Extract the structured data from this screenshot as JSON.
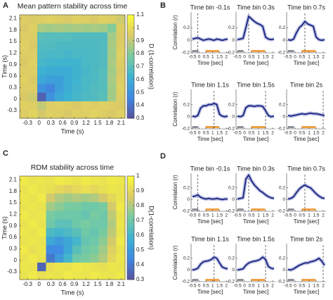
{
  "panel_labels": [
    "A",
    "B",
    "C",
    "D"
  ],
  "chart_data": [
    {
      "type": "heatmap",
      "title": "Mean pattern stability across time",
      "xlabel": "Time (s)",
      "ylabel": "Time (s)",
      "colorbar_label": "D (1-correlation)",
      "xlim": [
        -0.5,
        2.2
      ],
      "ylim": [
        -0.5,
        2.2
      ],
      "xticks": [
        -0.3,
        0,
        0.3,
        0.6,
        0.9,
        1.2,
        1.5,
        1.8,
        2.1
      ],
      "yticks": [
        -0.3,
        0,
        0.3,
        0.6,
        0.9,
        1.2,
        1.5,
        1.8,
        2.1
      ],
      "clim": [
        0.3,
        1.1
      ],
      "cticks": [
        0.3,
        0.4,
        0.5,
        0.6,
        0.7,
        0.8,
        0.9,
        1,
        1.1
      ],
      "z": [
        [
          0.95,
          0.97,
          0.93,
          0.96,
          0.95,
          0.94,
          0.96,
          0.95,
          0.97,
          0.95,
          0.94,
          0.96
        ],
        [
          0.96,
          0.95,
          0.9,
          0.95,
          0.96,
          0.95,
          0.94,
          0.96,
          0.95,
          0.96,
          0.95,
          0.94
        ],
        [
          0.94,
          0.92,
          0.35,
          0.5,
          0.58,
          0.62,
          0.65,
          0.67,
          0.68,
          0.7,
          0.85,
          0.95
        ],
        [
          0.95,
          0.95,
          0.5,
          0.45,
          0.55,
          0.6,
          0.64,
          0.66,
          0.68,
          0.69,
          0.85,
          0.96
        ],
        [
          0.96,
          0.94,
          0.58,
          0.55,
          0.55,
          0.6,
          0.63,
          0.66,
          0.67,
          0.69,
          0.86,
          0.95
        ],
        [
          0.95,
          0.95,
          0.62,
          0.6,
          0.6,
          0.6,
          0.63,
          0.65,
          0.67,
          0.69,
          0.85,
          0.94
        ],
        [
          0.94,
          0.96,
          0.65,
          0.64,
          0.63,
          0.63,
          0.63,
          0.66,
          0.67,
          0.68,
          0.86,
          0.95
        ],
        [
          0.95,
          0.95,
          0.67,
          0.66,
          0.66,
          0.65,
          0.66,
          0.66,
          0.67,
          0.68,
          0.85,
          0.96
        ],
        [
          0.96,
          0.94,
          0.68,
          0.68,
          0.67,
          0.67,
          0.67,
          0.67,
          0.67,
          0.68,
          0.86,
          0.95
        ],
        [
          0.95,
          0.95,
          0.7,
          0.69,
          0.69,
          0.69,
          0.68,
          0.68,
          0.68,
          0.68,
          0.85,
          0.94
        ],
        [
          0.94,
          0.96,
          0.86,
          0.85,
          0.86,
          0.85,
          0.86,
          0.85,
          0.86,
          0.85,
          0.8,
          0.95
        ],
        [
          0.95,
          0.94,
          0.95,
          0.96,
          0.95,
          0.94,
          0.96,
          0.95,
          0.94,
          0.96,
          0.95,
          0.92
        ]
      ]
    },
    {
      "type": "line",
      "title": "Time bin -0.1s",
      "ylabel": "Correlation (r)",
      "xlabel": "Time [sec]",
      "vline": -0.1,
      "xlim": [
        -0.6,
        2.2
      ],
      "ylim": [
        -0.2,
        0.45
      ],
      "xticks": [
        -0.5,
        0,
        0.5,
        1,
        1.5,
        2
      ],
      "yticks": [
        -0.2,
        0,
        0.2
      ],
      "x": [
        -0.5,
        -0.3,
        -0.1,
        0.1,
        0.3,
        0.5,
        0.7,
        0.9,
        1.1,
        1.3,
        1.5,
        1.7,
        1.9,
        2.1
      ],
      "series": [
        {
          "color": "#1a237e",
          "values": [
            0.02,
            0.03,
            0.04,
            0.02,
            0.0,
            0.01,
            0.02,
            0.01,
            0.0,
            0.02,
            0.01,
            0.0,
            0.01,
            0.02
          ]
        }
      ]
    },
    {
      "type": "line",
      "title": "Time bin 0.3s",
      "xlabel": "Time [sec]",
      "vline": 0.3,
      "xlim": [
        -0.6,
        2.2
      ],
      "ylim": [
        -0.2,
        0.45
      ],
      "xticks": [
        -0.5,
        0,
        0.5,
        1,
        1.5,
        2
      ],
      "yticks": [
        -0.2,
        0,
        0.2
      ],
      "x": [
        -0.5,
        -0.3,
        -0.1,
        0.1,
        0.3,
        0.5,
        0.7,
        0.9,
        1.1,
        1.3,
        1.5,
        1.7,
        1.9,
        2.1
      ],
      "series": [
        {
          "color": "#1a237e",
          "values": [
            0.01,
            0.02,
            0.03,
            0.2,
            0.38,
            0.34,
            0.3,
            0.27,
            0.25,
            0.22,
            0.05,
            0.02,
            0.01,
            0.02
          ]
        }
      ]
    },
    {
      "type": "line",
      "title": "Time bin 0.7s",
      "xlabel": "Time [sec]",
      "vline": 0.7,
      "xlim": [
        -0.6,
        2.2
      ],
      "ylim": [
        -0.2,
        0.45
      ],
      "xticks": [
        -0.5,
        0,
        0.5,
        1,
        1.5,
        2
      ],
      "yticks": [
        -0.2,
        0,
        0.2
      ],
      "x": [
        -0.5,
        -0.3,
        -0.1,
        0.1,
        0.3,
        0.5,
        0.7,
        0.9,
        1.1,
        1.3,
        1.5,
        1.7,
        1.9,
        2.1
      ],
      "series": [
        {
          "color": "#1a237e",
          "values": [
            0.01,
            0.0,
            0.02,
            0.12,
            0.2,
            0.24,
            0.3,
            0.26,
            0.24,
            0.22,
            0.05,
            0.01,
            0.0,
            0.01
          ]
        }
      ]
    },
    {
      "type": "line",
      "title": "Time bin 1.1s",
      "ylabel": "Correlation (r)",
      "xlabel": "Time [sec]",
      "vline": 1.1,
      "xlim": [
        -0.6,
        2.2
      ],
      "ylim": [
        -0.2,
        0.45
      ],
      "xticks": [
        -0.5,
        0,
        0.5,
        1,
        1.5,
        2
      ],
      "yticks": [
        -0.2,
        0,
        0.2
      ],
      "x": [
        -0.5,
        -0.3,
        -0.1,
        0.1,
        0.3,
        0.5,
        0.7,
        0.9,
        1.1,
        1.3,
        1.5,
        1.7,
        1.9,
        2.1
      ],
      "series": [
        {
          "color": "#1a237e",
          "values": [
            0.01,
            0.0,
            0.02,
            0.14,
            0.18,
            0.18,
            0.2,
            0.2,
            0.22,
            0.2,
            0.04,
            0.01,
            0.0,
            0.01
          ]
        }
      ]
    },
    {
      "type": "line",
      "title": "Time bin 1.5s",
      "xlabel": "Time [sec]",
      "vline": 1.5,
      "xlim": [
        -0.6,
        2.2
      ],
      "ylim": [
        -0.2,
        0.45
      ],
      "xticks": [
        -0.5,
        0,
        0.5,
        1,
        1.5,
        2
      ],
      "yticks": [
        -0.2,
        0,
        0.2
      ],
      "x": [
        -0.5,
        -0.3,
        -0.1,
        0.1,
        0.3,
        0.5,
        0.7,
        0.9,
        1.1,
        1.3,
        1.5,
        1.7,
        1.9,
        2.1
      ],
      "series": [
        {
          "color": "#1a237e",
          "values": [
            0.01,
            0.0,
            0.02,
            0.15,
            0.18,
            0.18,
            0.17,
            0.18,
            0.18,
            0.17,
            0.1,
            0.02,
            0.0,
            0.01
          ]
        }
      ]
    },
    {
      "type": "line",
      "title": "Time bin 2s",
      "xlabel": "Time [sec]",
      "vline": 2,
      "xlim": [
        -0.6,
        2.2
      ],
      "ylim": [
        -0.2,
        0.45
      ],
      "xticks": [
        -0.5,
        0,
        0.5,
        1,
        1.5,
        2
      ],
      "yticks": [
        -0.2,
        0,
        0.2
      ],
      "x": [
        -0.5,
        -0.3,
        -0.1,
        0.1,
        0.3,
        0.5,
        0.7,
        0.9,
        1.1,
        1.3,
        1.5,
        1.7,
        1.9,
        2.1
      ],
      "series": [
        {
          "color": "#1a237e",
          "values": [
            0.02,
            0.01,
            0.02,
            0.03,
            0.04,
            0.05,
            0.04,
            0.05,
            0.06,
            0.05,
            0.05,
            0.04,
            0.03,
            0.02
          ]
        }
      ]
    },
    {
      "type": "heatmap",
      "title": "RDM stability across time",
      "xlabel": "Time (s)",
      "ylabel": "Time (s)",
      "colorbar_label": "D(1-correlation)",
      "xlim": [
        -0.5,
        2.2
      ],
      "ylim": [
        -0.5,
        2.2
      ],
      "xticks": [
        -0.3,
        0,
        0.3,
        0.6,
        0.9,
        1.2,
        1.5,
        1.8,
        2.1
      ],
      "yticks": [
        -0.3,
        0,
        0.3,
        0.6,
        0.9,
        1.2,
        1.5,
        1.8,
        2.1
      ],
      "clim": [
        0.3,
        1.0
      ],
      "cticks": [
        0.3,
        0.4,
        0.5,
        0.6,
        0.7,
        0.8,
        0.9,
        1
      ],
      "z": [
        [
          0.93,
          0.95,
          0.92,
          0.94,
          0.93,
          0.95,
          0.94,
          0.93,
          0.95,
          0.94,
          0.93,
          0.95
        ],
        [
          0.94,
          0.93,
          0.35,
          0.92,
          0.94,
          0.93,
          0.95,
          0.94,
          0.93,
          0.92,
          0.94,
          0.93
        ],
        [
          0.93,
          0.95,
          0.93,
          0.4,
          0.5,
          0.6,
          0.7,
          0.72,
          0.75,
          0.8,
          0.9,
          0.94
        ],
        [
          0.95,
          0.92,
          0.94,
          0.45,
          0.45,
          0.55,
          0.65,
          0.7,
          0.72,
          0.78,
          0.88,
          0.93
        ],
        [
          0.93,
          0.94,
          0.93,
          0.55,
          0.5,
          0.55,
          0.6,
          0.68,
          0.7,
          0.75,
          0.85,
          0.95
        ],
        [
          0.94,
          0.93,
          0.95,
          0.62,
          0.6,
          0.62,
          0.65,
          0.7,
          0.68,
          0.72,
          0.82,
          0.93
        ],
        [
          0.93,
          0.95,
          0.93,
          0.7,
          0.66,
          0.66,
          0.7,
          0.72,
          0.7,
          0.7,
          0.8,
          0.94
        ],
        [
          0.95,
          0.93,
          0.94,
          0.72,
          0.7,
          0.7,
          0.7,
          0.68,
          0.72,
          0.7,
          0.82,
          0.93
        ],
        [
          0.93,
          0.94,
          0.93,
          0.78,
          0.75,
          0.72,
          0.72,
          0.7,
          0.7,
          0.72,
          0.85,
          0.95
        ],
        [
          0.94,
          0.93,
          0.95,
          0.85,
          0.8,
          0.78,
          0.8,
          0.78,
          0.8,
          0.85,
          0.9,
          0.93
        ],
        [
          0.93,
          0.95,
          0.93,
          0.92,
          0.9,
          0.88,
          0.9,
          0.92,
          0.9,
          0.92,
          0.94,
          0.93
        ],
        [
          0.95,
          0.93,
          0.94,
          0.93,
          0.95,
          0.94,
          0.93,
          0.95,
          0.94,
          0.93,
          0.95,
          0.94
        ]
      ]
    },
    {
      "type": "line",
      "title": "Time bin -0.1s",
      "ylabel": "Correlation (r)",
      "xlabel": "Time [sec]",
      "vline": -0.1,
      "xlim": [
        -0.6,
        2.2
      ],
      "ylim": [
        -0.2,
        0.45
      ],
      "xticks": [
        -0.5,
        0,
        0.5,
        1,
        1.5,
        2
      ],
      "yticks": [
        -0.2,
        0,
        0.2
      ],
      "x": [
        -0.5,
        -0.3,
        -0.1,
        0.1,
        0.3,
        0.5,
        0.7,
        0.9,
        1.1,
        1.3,
        1.5,
        1.7,
        1.9,
        2.1
      ],
      "series": [
        {
          "color": "#1a237e",
          "values": [
            0.05,
            0.06,
            0.08,
            0.04,
            0.02,
            0.01,
            0.02,
            0.01,
            0.01,
            0.02,
            0.01,
            0.0,
            0.01,
            0.01
          ]
        }
      ]
    },
    {
      "type": "line",
      "title": "Time bin 0.3s",
      "xlabel": "Time [sec]",
      "vline": 0.3,
      "xlim": [
        -0.6,
        2.2
      ],
      "ylim": [
        -0.2,
        0.45
      ],
      "xticks": [
        -0.5,
        0,
        0.5,
        1,
        1.5,
        2
      ],
      "yticks": [
        -0.2,
        0,
        0.2
      ],
      "x": [
        -0.5,
        -0.3,
        -0.1,
        0.1,
        0.3,
        0.5,
        0.7,
        0.9,
        1.1,
        1.3,
        1.5,
        1.7,
        1.9,
        2.1
      ],
      "series": [
        {
          "color": "#1a237e",
          "values": [
            0.01,
            0.02,
            0.03,
            0.35,
            0.42,
            0.32,
            0.25,
            0.2,
            0.15,
            0.12,
            0.08,
            0.05,
            0.03,
            0.02
          ]
        }
      ]
    },
    {
      "type": "line",
      "title": "Time bin 0.7s",
      "xlabel": "Time [sec]",
      "vline": 0.7,
      "xlim": [
        -0.6,
        2.2
      ],
      "ylim": [
        -0.2,
        0.45
      ],
      "xticks": [
        -0.5,
        0,
        0.5,
        1,
        1.5,
        2
      ],
      "yticks": [
        -0.2,
        0,
        0.2
      ],
      "x": [
        -0.5,
        -0.3,
        -0.1,
        0.1,
        0.3,
        0.5,
        0.7,
        0.9,
        1.1,
        1.3,
        1.5,
        1.7,
        1.9,
        2.1
      ],
      "series": [
        {
          "color": "#1a237e",
          "values": [
            0.01,
            0.02,
            0.05,
            0.12,
            0.18,
            0.22,
            0.25,
            0.22,
            0.2,
            0.15,
            0.1,
            0.06,
            0.03,
            0.02
          ]
        }
      ]
    },
    {
      "type": "line",
      "title": "Time bin 1.1s",
      "ylabel": "Correlation (r)",
      "xlabel": "Time [sec]",
      "vline": 1.1,
      "xlim": [
        -0.6,
        2.2
      ],
      "ylim": [
        -0.2,
        0.45
      ],
      "xticks": [
        -0.5,
        0,
        0.5,
        1,
        1.5,
        2
      ],
      "yticks": [
        -0.2,
        0,
        0.2
      ],
      "x": [
        -0.5,
        -0.3,
        -0.1,
        0.1,
        0.3,
        0.5,
        0.7,
        0.9,
        1.1,
        1.3,
        1.5,
        1.7,
        1.9,
        2.1
      ],
      "series": [
        {
          "color": "#1a237e",
          "values": [
            0.0,
            0.01,
            0.03,
            0.1,
            0.14,
            0.15,
            0.16,
            0.18,
            0.22,
            0.2,
            0.12,
            0.05,
            0.03,
            0.02
          ]
        }
      ]
    },
    {
      "type": "line",
      "title": "Time bin 1.5s",
      "xlabel": "Time [sec]",
      "vline": 1.5,
      "xlim": [
        -0.6,
        2.2
      ],
      "ylim": [
        -0.2,
        0.45
      ],
      "xticks": [
        -0.5,
        0,
        0.5,
        1,
        1.5,
        2
      ],
      "yticks": [
        -0.2,
        0,
        0.2
      ],
      "x": [
        -0.5,
        -0.3,
        -0.1,
        0.1,
        0.3,
        0.5,
        0.7,
        0.9,
        1.1,
        1.3,
        1.5,
        1.7,
        1.9,
        2.1
      ],
      "series": [
        {
          "color": "#1a237e",
          "values": [
            0.0,
            0.01,
            0.02,
            0.08,
            0.12,
            0.14,
            0.15,
            0.16,
            0.18,
            0.22,
            0.18,
            0.06,
            0.03,
            0.02
          ]
        }
      ]
    },
    {
      "type": "line",
      "title": "Time bin 2s",
      "xlabel": "Time [sec]",
      "vline": 2,
      "xlim": [
        -0.6,
        2.2
      ],
      "ylim": [
        -0.2,
        0.45
      ],
      "xticks": [
        -0.5,
        0,
        0.5,
        1,
        1.5,
        2
      ],
      "yticks": [
        -0.2,
        0,
        0.2
      ],
      "x": [
        -0.5,
        -0.3,
        -0.1,
        0.1,
        0.3,
        0.5,
        0.7,
        0.9,
        1.1,
        1.3,
        1.5,
        1.7,
        1.9,
        2.1
      ],
      "series": [
        {
          "color": "#1a237e",
          "values": [
            0.01,
            0.0,
            0.02,
            0.05,
            0.08,
            0.1,
            0.12,
            0.12,
            0.14,
            0.15,
            0.17,
            0.2,
            0.15,
            0.08
          ]
        }
      ]
    }
  ]
}
